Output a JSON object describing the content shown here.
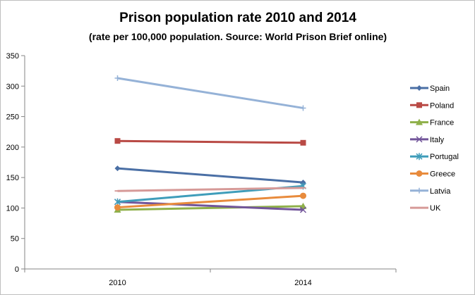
{
  "chart_data": {
    "type": "line",
    "title": "Prison population rate 2010 and 2014",
    "subtitle": "(rate per 100,000 population. Source: World Prison Brief online)",
    "categories": [
      "2010",
      "2014"
    ],
    "ylim": [
      0,
      350
    ],
    "yticks": [
      0,
      50,
      100,
      150,
      200,
      250,
      300,
      350
    ],
    "grid": false,
    "legend_position": "right",
    "series": [
      {
        "name": "Spain",
        "values": [
          165,
          142
        ],
        "color": "#4a6fa5",
        "marker": "diamond"
      },
      {
        "name": "Poland",
        "values": [
          210,
          207
        ],
        "color": "#b94a45",
        "marker": "square"
      },
      {
        "name": "France",
        "values": [
          97,
          103
        ],
        "color": "#8fb04a",
        "marker": "triangle"
      },
      {
        "name": "Italy",
        "values": [
          110,
          97
        ],
        "color": "#72559a",
        "marker": "x"
      },
      {
        "name": "Portugal",
        "values": [
          110,
          136
        ],
        "color": "#3f9dba",
        "marker": "asterisk"
      },
      {
        "name": "Greece",
        "values": [
          101,
          120
        ],
        "color": "#e88b3c",
        "marker": "circle"
      },
      {
        "name": "Latvia",
        "values": [
          313,
          264
        ],
        "color": "#95b2d7",
        "marker": "plus"
      },
      {
        "name": "UK",
        "values": [
          128,
          133
        ],
        "color": "#d69a98",
        "marker": "dash"
      }
    ]
  }
}
